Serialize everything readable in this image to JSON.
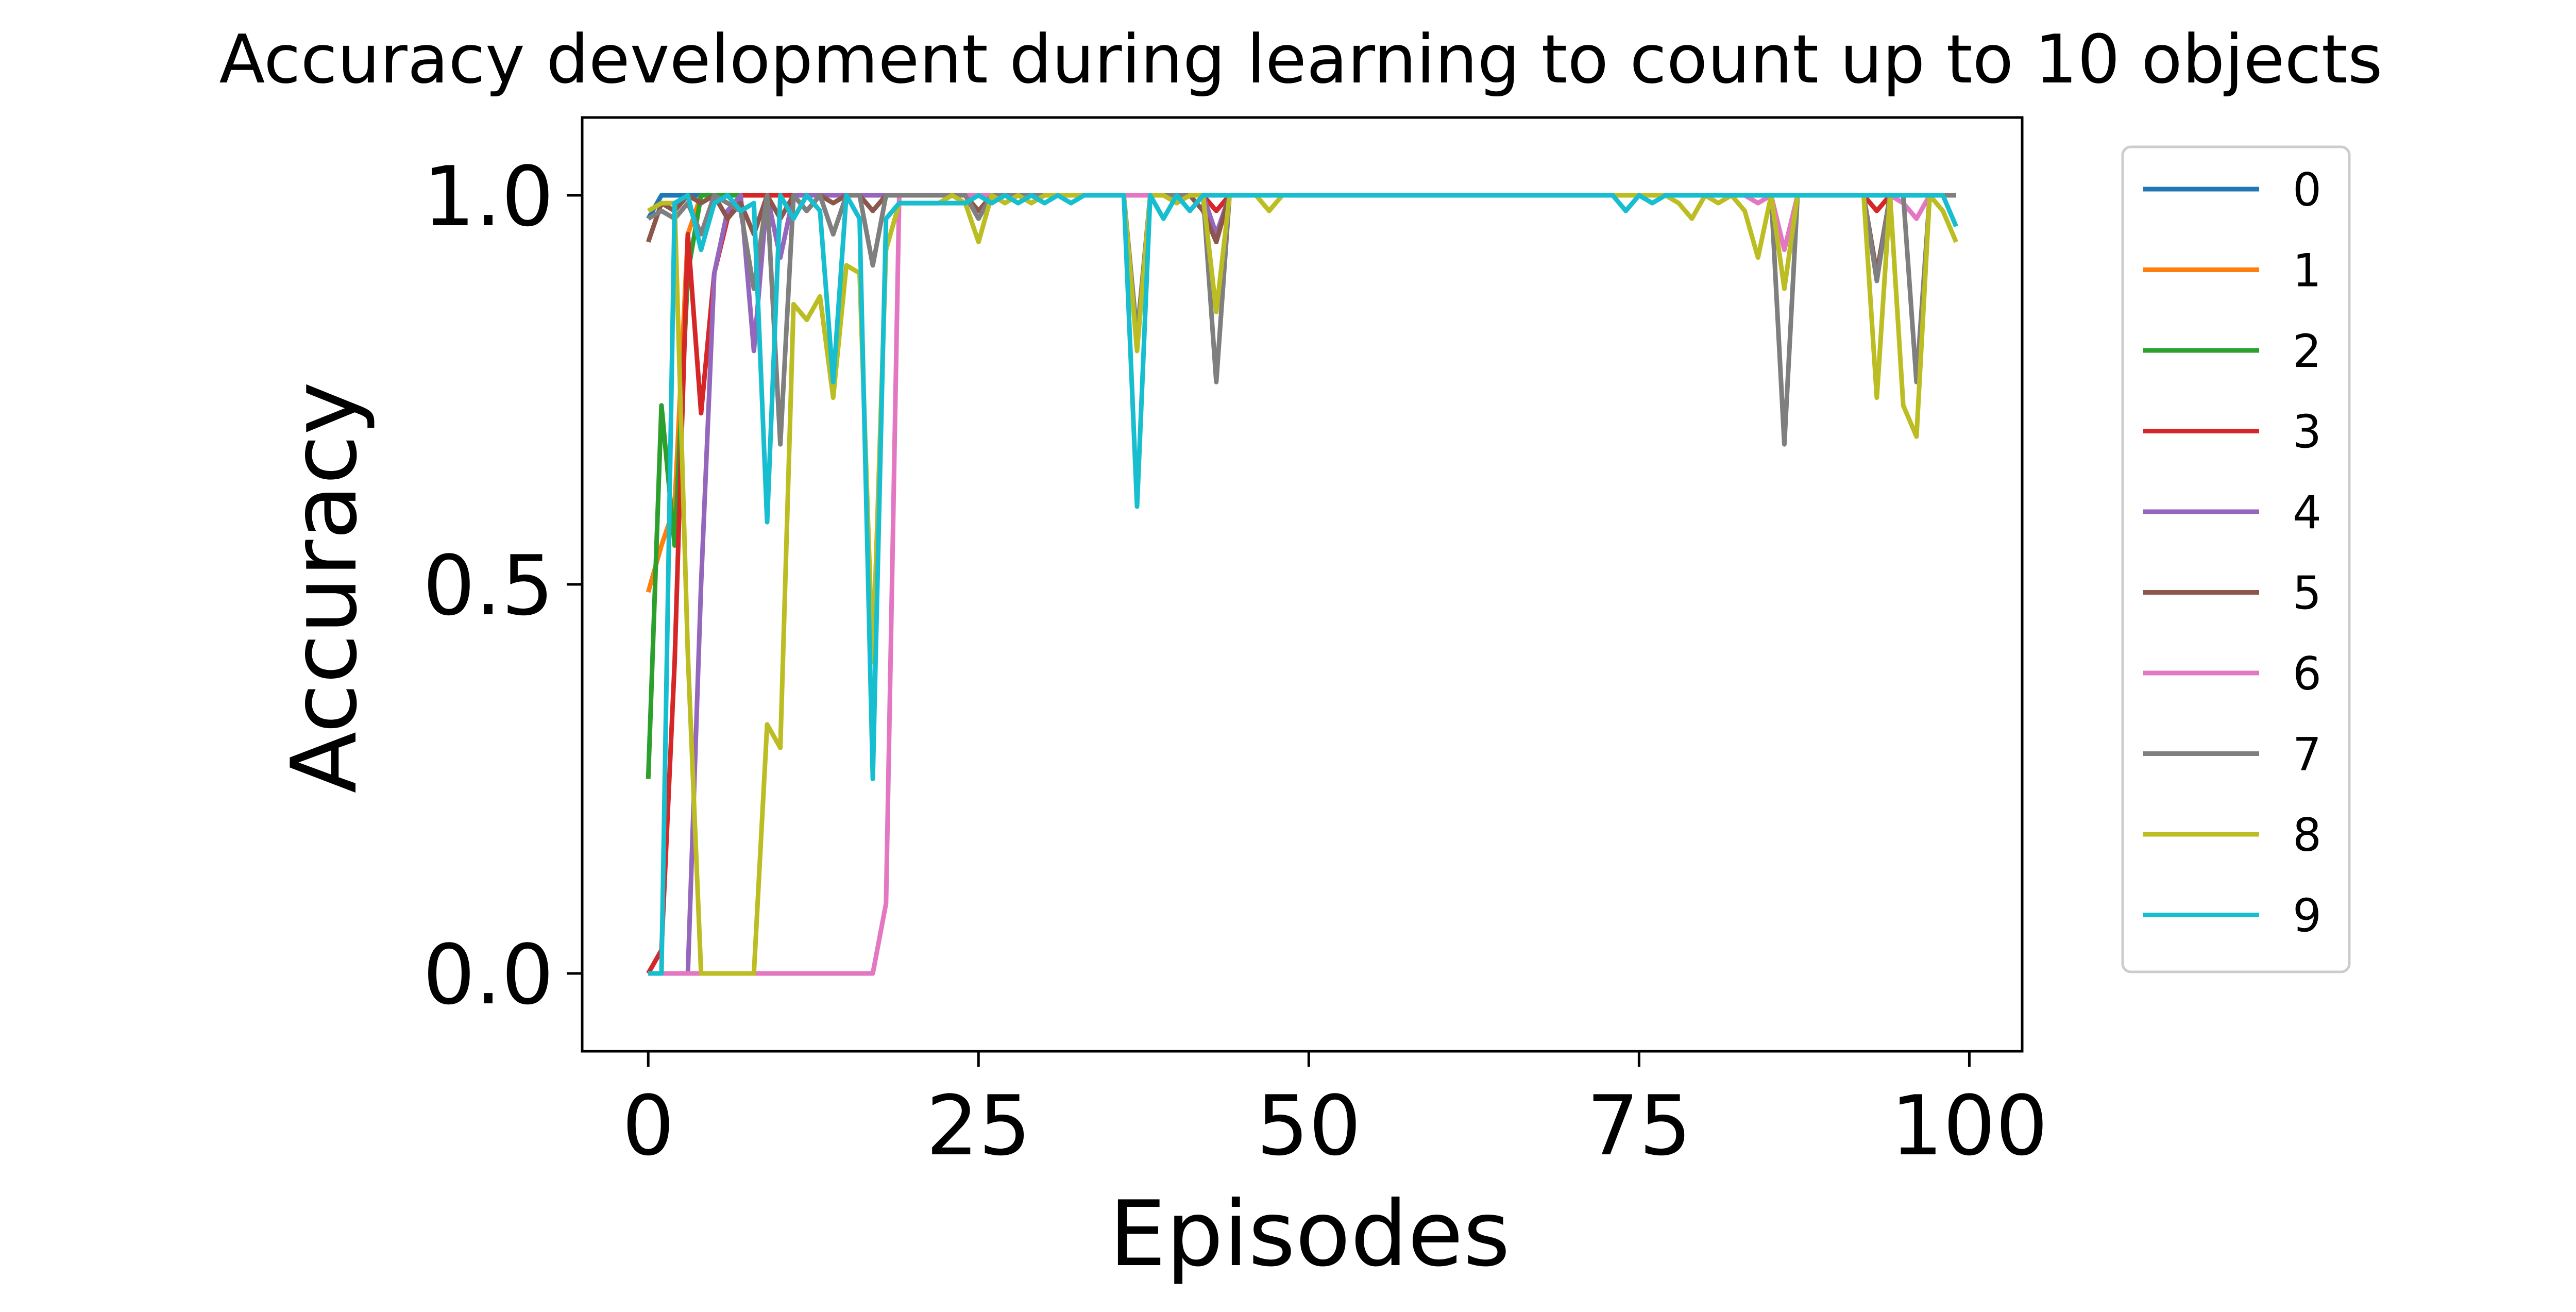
{
  "chart_data": {
    "type": "line",
    "title": "Accuracy development during learning to count up to 10 objects",
    "xlabel": "Episodes",
    "ylabel": "Accuracy",
    "xlim": [
      -5,
      104
    ],
    "ylim": [
      -0.1,
      1.1
    ],
    "xticks": [
      0,
      25,
      50,
      75,
      100
    ],
    "xtick_labels": [
      "0",
      "25",
      "50",
      "75",
      "100"
    ],
    "yticks": [
      0.0,
      0.5,
      1.0
    ],
    "ytick_labels": [
      "0.0",
      "0.5",
      "1.0"
    ],
    "grid": false,
    "legend_placement": "outside-right-top",
    "x": [
      0,
      1,
      2,
      3,
      4,
      5,
      6,
      7,
      8,
      9,
      10,
      11,
      12,
      13,
      14,
      15,
      16,
      17,
      18,
      19,
      20,
      21,
      22,
      23,
      24,
      25,
      26,
      27,
      28,
      29,
      30,
      31,
      32,
      33,
      34,
      35,
      36,
      37,
      38,
      39,
      40,
      41,
      42,
      43,
      44,
      45,
      46,
      47,
      48,
      49,
      50,
      51,
      52,
      53,
      54,
      55,
      56,
      57,
      58,
      59,
      60,
      61,
      62,
      63,
      64,
      65,
      66,
      67,
      68,
      69,
      70,
      71,
      72,
      73,
      74,
      75,
      76,
      77,
      78,
      79,
      80,
      81,
      82,
      83,
      84,
      85,
      86,
      87,
      88,
      89,
      90,
      91,
      92,
      93,
      94,
      95,
      96,
      97,
      98,
      99
    ],
    "series": [
      {
        "name": "0",
        "color": "#1f77b4",
        "values": [
          0.97,
          1,
          1,
          1,
          1,
          1,
          1,
          1,
          1,
          1,
          1,
          1,
          1,
          1,
          1,
          1,
          1,
          1,
          1,
          1,
          1,
          1,
          1,
          1,
          1,
          1,
          1,
          1,
          1,
          1,
          1,
          1,
          1,
          1,
          1,
          1,
          1,
          1,
          1,
          1,
          1,
          1,
          1,
          1,
          1,
          1,
          1,
          1,
          1,
          1,
          1,
          1,
          1,
          1,
          1,
          1,
          1,
          1,
          1,
          1,
          1,
          1,
          1,
          1,
          1,
          1,
          1,
          1,
          1,
          1,
          1,
          1,
          1,
          1,
          1,
          1,
          1,
          1,
          1,
          1,
          1,
          1,
          1,
          1,
          1,
          1,
          1,
          1,
          1,
          1,
          1,
          1,
          1,
          1,
          1,
          1,
          1,
          1,
          1,
          1
        ]
      },
      {
        "name": "1",
        "color": "#ff7f0e",
        "values": [
          0.49,
          0.55,
          0.6,
          0.95,
          1,
          1,
          1,
          1,
          1,
          1,
          1,
          1,
          1,
          1,
          1,
          1,
          1,
          1,
          1,
          1,
          1,
          1,
          1,
          1,
          1,
          1,
          1,
          1,
          1,
          1,
          1,
          1,
          1,
          1,
          1,
          1,
          1,
          1,
          1,
          1,
          1,
          1,
          1,
          1,
          1,
          1,
          1,
          1,
          1,
          1,
          1,
          1,
          1,
          1,
          1,
          1,
          1,
          1,
          1,
          1,
          1,
          1,
          1,
          1,
          1,
          1,
          1,
          1,
          1,
          1,
          1,
          1,
          1,
          1,
          1,
          1,
          1,
          1,
          1,
          1,
          1,
          1,
          1,
          1,
          1,
          1,
          1,
          1,
          1,
          1,
          1,
          1,
          1,
          1,
          1,
          1,
          1,
          1,
          1,
          1
        ]
      },
      {
        "name": "2",
        "color": "#2ca02c",
        "values": [
          0.25,
          0.73,
          0.55,
          0.9,
          1,
          1,
          1,
          1,
          1,
          1,
          1,
          1,
          1,
          1,
          1,
          1,
          1,
          1,
          1,
          1,
          1,
          1,
          1,
          1,
          1,
          1,
          1,
          1,
          1,
          1,
          1,
          1,
          1,
          1,
          1,
          1,
          1,
          1,
          1,
          1,
          1,
          1,
          1,
          1,
          1,
          1,
          1,
          1,
          1,
          1,
          1,
          1,
          1,
          1,
          1,
          1,
          1,
          1,
          1,
          1,
          1,
          1,
          1,
          1,
          1,
          1,
          1,
          1,
          1,
          1,
          1,
          1,
          1,
          1,
          1,
          1,
          1,
          1,
          1,
          1,
          1,
          1,
          1,
          1,
          1,
          1,
          1,
          1,
          1,
          1,
          1,
          1,
          1,
          1,
          1,
          1,
          1,
          1,
          1,
          1
        ]
      },
      {
        "name": "3",
        "color": "#d62728",
        "values": [
          0,
          0.03,
          0.4,
          0.95,
          0.72,
          0.9,
          0.97,
          1,
          1,
          1,
          1,
          1,
          1,
          1,
          1,
          1,
          1,
          1,
          1,
          1,
          1,
          1,
          1,
          1,
          1,
          1,
          1,
          1,
          1,
          1,
          1,
          1,
          1,
          1,
          1,
          1,
          1,
          1,
          1,
          1,
          1,
          1,
          1,
          0.98,
          1,
          1,
          1,
          1,
          1,
          1,
          1,
          1,
          1,
          1,
          1,
          1,
          1,
          1,
          1,
          1,
          1,
          1,
          1,
          1,
          1,
          1,
          1,
          1,
          1,
          1,
          1,
          1,
          1,
          1,
          1,
          1,
          1,
          1,
          1,
          1,
          1,
          1,
          1,
          1,
          1,
          1,
          1,
          1,
          1,
          1,
          1,
          1,
          1,
          0.98,
          1,
          1,
          1,
          1,
          1,
          1
        ]
      },
      {
        "name": "4",
        "color": "#9467bd",
        "values": [
          0,
          0,
          0,
          0,
          0.5,
          0.9,
          0.98,
          1,
          0.8,
          1,
          0.92,
          1,
          1,
          1,
          1,
          1,
          1,
          1,
          1,
          1,
          1,
          1,
          1,
          1,
          1,
          1,
          1,
          1,
          1,
          1,
          1,
          1,
          1,
          1,
          1,
          1,
          1,
          1,
          1,
          1,
          1,
          1,
          1,
          0.95,
          1,
          1,
          1,
          1,
          1,
          1,
          1,
          1,
          1,
          1,
          1,
          1,
          1,
          1,
          1,
          1,
          1,
          1,
          1,
          1,
          1,
          1,
          1,
          1,
          1,
          1,
          1,
          1,
          1,
          1,
          1,
          1,
          1,
          1,
          1,
          1,
          1,
          1,
          1,
          1,
          1,
          1,
          1,
          1,
          1,
          1,
          1,
          1,
          1,
          1,
          1,
          1,
          1,
          1,
          1,
          1
        ]
      },
      {
        "name": "5",
        "color": "#8c564b",
        "values": [
          0.94,
          0.99,
          0.98,
          1,
          0.99,
          1,
          0.97,
          0.99,
          0.95,
          1,
          0.97,
          1,
          0.98,
          1,
          0.99,
          1,
          1,
          0.98,
          1,
          1,
          1,
          1,
          1,
          1,
          1,
          0.98,
          1,
          1,
          1,
          1,
          1,
          1,
          1,
          1,
          1,
          1,
          1,
          1,
          1,
          1,
          1,
          1,
          0.98,
          0.94,
          1,
          1,
          1,
          1,
          1,
          1,
          1,
          1,
          1,
          1,
          1,
          1,
          1,
          1,
          1,
          1,
          1,
          1,
          1,
          1,
          1,
          1,
          1,
          1,
          1,
          1,
          1,
          1,
          1,
          1,
          1,
          1,
          1,
          1,
          1,
          1,
          1,
          1,
          1,
          1,
          1,
          1,
          1,
          1,
          1,
          1,
          1,
          1,
          1,
          0.9,
          1,
          1,
          1,
          1,
          1,
          1
        ]
      },
      {
        "name": "6",
        "color": "#e377c2",
        "values": [
          0,
          0,
          0,
          0,
          0,
          0,
          0,
          0,
          0,
          0,
          0,
          0,
          0,
          0,
          0,
          0,
          0,
          0,
          0.09,
          1,
          1,
          1,
          1,
          1,
          1,
          1,
          1,
          1,
          1,
          1,
          1,
          1,
          1,
          1,
          1,
          1,
          1,
          1,
          1,
          1,
          1,
          1,
          1,
          1,
          1,
          1,
          1,
          1,
          1,
          1,
          1,
          1,
          1,
          1,
          1,
          1,
          1,
          1,
          1,
          1,
          1,
          1,
          1,
          1,
          1,
          1,
          1,
          1,
          1,
          1,
          1,
          1,
          1,
          1,
          1,
          1,
          1,
          1,
          1,
          1,
          1,
          1,
          1,
          1,
          0.99,
          1,
          0.93,
          1,
          1,
          1,
          1,
          1,
          1,
          1,
          1,
          0.99,
          0.97,
          1,
          1,
          1
        ]
      },
      {
        "name": "7",
        "color": "#7f7f7f",
        "values": [
          0.97,
          0.98,
          0.97,
          0.99,
          0.95,
          1,
          0.99,
          0.98,
          0.88,
          1,
          0.68,
          1,
          0.98,
          1,
          0.95,
          1,
          1,
          0.91,
          1,
          1,
          1,
          1,
          1,
          1,
          1,
          0.97,
          1,
          1,
          1,
          1,
          1,
          1,
          1,
          1,
          1,
          1,
          1,
          0.82,
          1,
          1,
          1,
          1,
          1,
          0.76,
          1,
          1,
          1,
          1,
          1,
          1,
          1,
          1,
          1,
          1,
          1,
          1,
          1,
          1,
          1,
          1,
          1,
          1,
          1,
          1,
          1,
          1,
          1,
          1,
          1,
          1,
          1,
          1,
          1,
          1,
          1,
          1,
          1,
          1,
          1,
          1,
          1,
          1,
          1,
          1,
          1,
          1,
          0.68,
          1,
          1,
          1,
          1,
          1,
          1,
          0.89,
          1,
          1,
          0.76,
          1,
          1,
          1
        ]
      },
      {
        "name": "8",
        "color": "#bcbd22",
        "values": [
          0.98,
          0.99,
          0.99,
          0.41,
          0,
          0,
          0,
          0,
          0,
          0.32,
          0.29,
          0.86,
          0.84,
          0.87,
          0.74,
          0.91,
          0.9,
          0.4,
          0.93,
          0.99,
          0.99,
          0.99,
          0.99,
          1,
          0.99,
          0.94,
          1,
          0.99,
          1,
          0.99,
          1,
          1,
          1,
          1,
          1,
          1,
          1,
          0.8,
          1,
          1,
          0.99,
          1,
          1,
          0.85,
          1,
          1,
          1,
          0.98,
          1,
          1,
          1,
          1,
          1,
          1,
          1,
          1,
          1,
          1,
          1,
          1,
          1,
          1,
          1,
          1,
          1,
          1,
          1,
          1,
          1,
          1,
          1,
          1,
          1,
          1,
          1,
          1,
          1,
          1,
          0.99,
          0.97,
          1,
          0.99,
          1,
          0.98,
          0.92,
          1,
          0.88,
          1,
          1,
          1,
          1,
          1,
          1,
          0.74,
          1,
          0.73,
          0.69,
          1,
          0.98,
          0.94
        ]
      },
      {
        "name": "9",
        "color": "#17becf",
        "values": [
          0,
          0,
          0.99,
          1,
          0.93,
          0.99,
          1,
          0.98,
          0.99,
          0.58,
          1,
          0.97,
          1,
          0.98,
          0.76,
          1,
          0.97,
          0.25,
          0.97,
          0.99,
          0.99,
          0.99,
          0.99,
          0.99,
          0.99,
          1,
          0.99,
          1,
          0.99,
          1,
          0.99,
          1,
          0.99,
          1,
          1,
          1,
          1,
          0.6,
          1,
          0.97,
          1,
          0.98,
          1,
          1,
          1,
          1,
          1,
          1,
          1,
          1,
          1,
          1,
          1,
          1,
          1,
          1,
          1,
          1,
          1,
          1,
          1,
          1,
          1,
          1,
          1,
          1,
          1,
          1,
          1,
          1,
          1,
          1,
          1,
          1,
          0.98,
          1,
          0.99,
          1,
          1,
          1,
          1,
          1,
          1,
          1,
          1,
          1,
          1,
          1,
          1,
          1,
          1,
          1,
          1,
          1,
          1,
          1,
          1,
          1,
          1,
          0.96
        ]
      }
    ]
  }
}
